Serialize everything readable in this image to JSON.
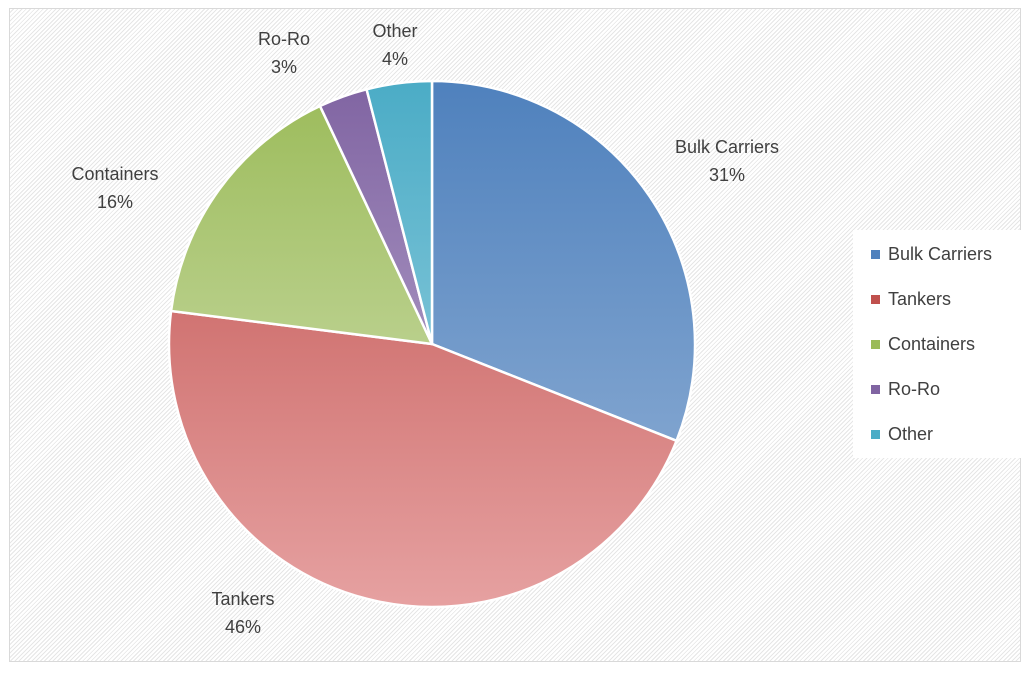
{
  "chart_data": {
    "type": "pie",
    "title": "",
    "categories": [
      "Bulk Carriers",
      "Tankers",
      "Containers",
      "Ro-Ro",
      "Other"
    ],
    "values": [
      31,
      46,
      16,
      3,
      4
    ],
    "data_labels": [
      "31%",
      "46%",
      "16%",
      "3%",
      "4%"
    ],
    "colors": [
      "#4f81bd",
      "#c0504d",
      "#9bbb59",
      "#8064a2",
      "#4bacc6"
    ],
    "colors_light": [
      "#95b3d7",
      "#e6a1a1",
      "#d7e4bd",
      "#c3b5d6",
      "#a5d7e5"
    ],
    "legend": "right",
    "start_angle_deg": 0,
    "direction": "clockwise"
  }
}
